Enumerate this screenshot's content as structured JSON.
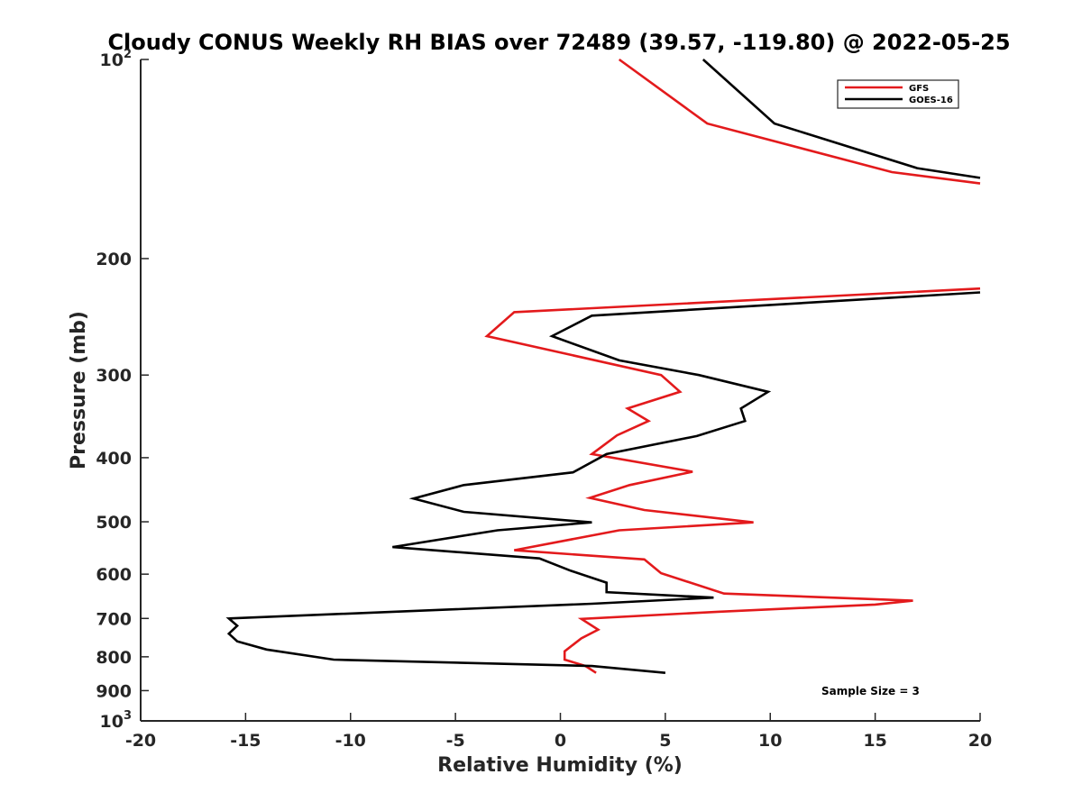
{
  "chart_data": {
    "type": "line",
    "title": "Cloudy CONUS Weekly RH BIAS over 72489 (39.57, -119.80) @ 2022-05-25",
    "xlabel": "Relative Humidity (%)",
    "ylabel": "Pressure (mb)",
    "xlim": [
      -20,
      20
    ],
    "ylim": [
      100,
      1000
    ],
    "yscale": "log",
    "y_reversed": true,
    "x_ticks": [
      -20,
      -15,
      -10,
      -5,
      0,
      5,
      10,
      15,
      20
    ],
    "y_ticks": [
      {
        "value": 100,
        "label": "10",
        "sup": "2"
      },
      {
        "value": 200,
        "label": "200"
      },
      {
        "value": 300,
        "label": "300"
      },
      {
        "value": 400,
        "label": "400"
      },
      {
        "value": 500,
        "label": "500"
      },
      {
        "value": 600,
        "label": "600"
      },
      {
        "value": 700,
        "label": "700"
      },
      {
        "value": 800,
        "label": "800"
      },
      {
        "value": 900,
        "label": "900"
      },
      {
        "value": 1000,
        "label": "10",
        "sup": "3"
      }
    ],
    "grid": false,
    "legend": {
      "position": "top-right"
    },
    "series": [
      {
        "name": "GFS",
        "color": "#e31a1c",
        "points": [
          [
            2.8,
            100
          ],
          [
            7.0,
            125
          ],
          [
            15.8,
            148
          ],
          [
            20.0,
            154
          ],
          [
            null,
            null
          ],
          [
            20.0,
            222
          ],
          [
            -2.2,
            241
          ],
          [
            -3.5,
            262
          ],
          [
            4.8,
            300
          ],
          [
            5.7,
            318
          ],
          [
            3.2,
            337
          ],
          [
            4.2,
            352
          ],
          [
            2.7,
            370
          ],
          [
            1.5,
            395
          ],
          [
            6.3,
            420
          ],
          [
            3.3,
            440
          ],
          [
            1.4,
            460
          ],
          [
            4.0,
            480
          ],
          [
            9.2,
            501
          ],
          [
            2.8,
            515
          ],
          [
            -2.2,
            552
          ],
          [
            4.0,
            570
          ],
          [
            4.8,
            598
          ],
          [
            7.8,
            642
          ],
          [
            16.8,
            658
          ],
          [
            15.0,
            667
          ],
          [
            7.5,
            684
          ],
          [
            1.0,
            701
          ],
          [
            1.8,
            728
          ],
          [
            1.0,
            750
          ],
          [
            0.2,
            785
          ],
          [
            0.2,
            808
          ],
          [
            1.2,
            826
          ],
          [
            1.7,
            846
          ]
        ]
      },
      {
        "name": "GOES-16",
        "color": "#000000",
        "points": [
          [
            6.8,
            100
          ],
          [
            10.2,
            125
          ],
          [
            17.0,
            146
          ],
          [
            20.0,
            151
          ],
          [
            null,
            null
          ],
          [
            20.0,
            225
          ],
          [
            1.5,
            244
          ],
          [
            -0.4,
            262
          ],
          [
            2.8,
            285
          ],
          [
            6.6,
            300
          ],
          [
            9.9,
            318
          ],
          [
            8.6,
            337
          ],
          [
            8.8,
            352
          ],
          [
            6.5,
            371
          ],
          [
            2.2,
            395
          ],
          [
            0.6,
            421
          ],
          [
            -4.6,
            440
          ],
          [
            -7.0,
            461
          ],
          [
            -4.6,
            483
          ],
          [
            1.5,
            501
          ],
          [
            -3.0,
            515
          ],
          [
            -8.0,
            546
          ],
          [
            -1.0,
            568
          ],
          [
            0.5,
            593
          ],
          [
            2.2,
            618
          ],
          [
            2.2,
            639
          ],
          [
            7.3,
            651
          ],
          [
            1.5,
            665
          ],
          [
            -15.8,
            700
          ],
          [
            -15.4,
            718
          ],
          [
            -15.8,
            738
          ],
          [
            -15.4,
            758
          ],
          [
            -14.0,
            780
          ],
          [
            -10.8,
            808
          ],
          [
            1.5,
            826
          ],
          [
            5.0,
            846
          ]
        ]
      }
    ],
    "annotations": [
      {
        "text": "Sample Size = 3",
        "position": "bottom-right"
      }
    ]
  }
}
